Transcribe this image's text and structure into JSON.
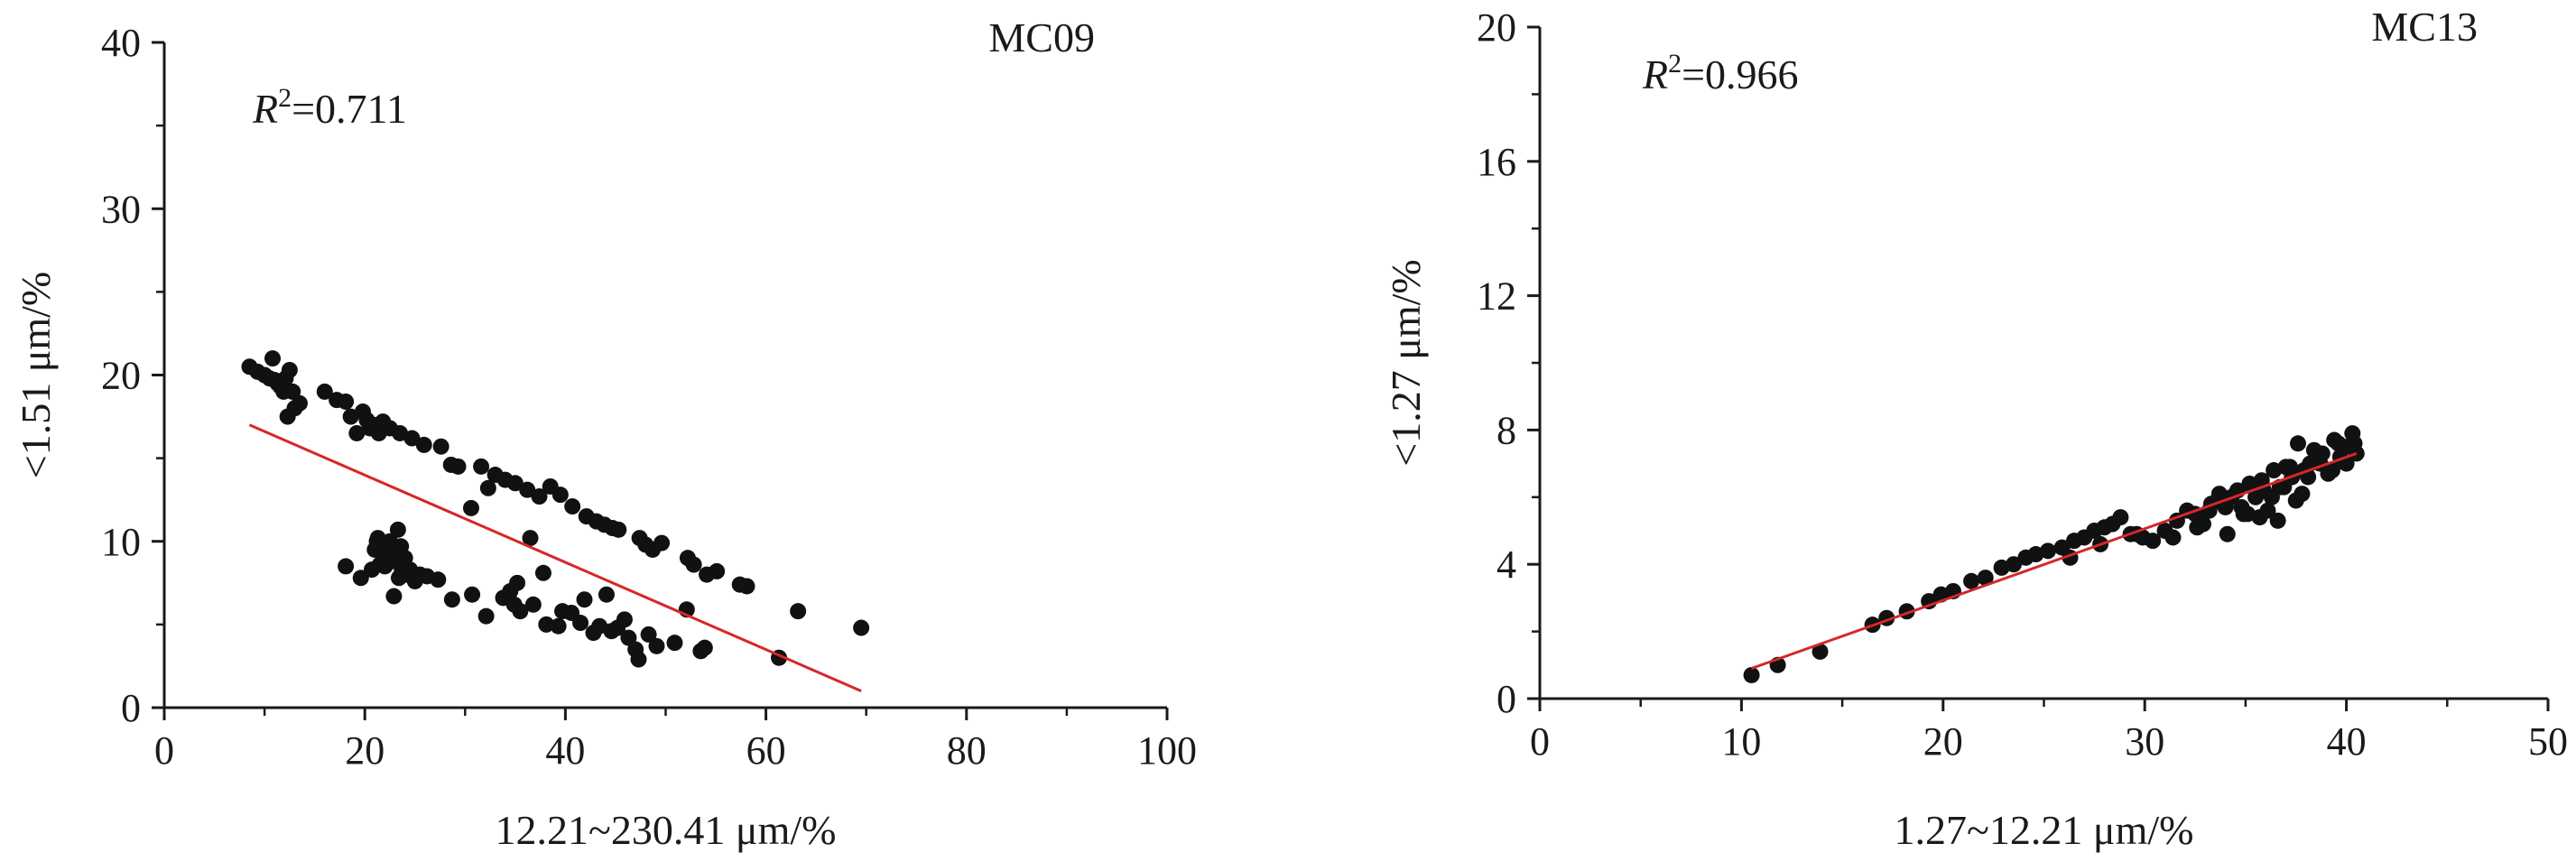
{
  "chart_data": [
    {
      "type": "scatter",
      "panel_label": "MC09",
      "annotation": {
        "prefix": "R",
        "sup": "2",
        "suffix": "=0.711"
      },
      "xlabel": "12.21~230.41 μm/%",
      "ylabel": "<1.51 μm/%",
      "xlim": [
        0,
        100
      ],
      "ylim": [
        0,
        40
      ],
      "xticks": [
        "0",
        "20",
        "40",
        "60",
        "80",
        "100"
      ],
      "yticks": [
        "0",
        "10",
        "20",
        "30",
        "40"
      ],
      "grid": false,
      "point_color": "#111111",
      "fit_color": "#d62728",
      "fit_line": {
        "x": [
          8.5,
          69.5
        ],
        "y": [
          17.0,
          1.0
        ]
      },
      "series": [
        {
          "x": [
            8.5,
            9.3,
            10.0,
            10.5,
            10.8,
            11.0,
            11.3,
            11.6,
            11.9,
            12.1,
            12.5,
            12.8,
            13.0,
            12.3,
            13.5,
            16.0,
            17.2,
            18.1,
            18.6,
            19.2,
            19.8,
            20.2,
            20.5,
            20.9,
            21.4,
            21.8,
            22.5,
            23.5,
            24.7,
            25.9,
            27.6,
            28.6,
            29.3,
            30.6,
            31.6,
            32.3,
            33.0,
            34.0,
            35.0,
            36.2,
            37.4,
            38.5,
            39.5,
            40.7,
            42.1,
            43.1,
            43.9,
            44.7,
            45.3,
            47.4,
            48.0,
            48.7,
            49.6,
            52.2,
            52.8,
            54.1,
            55.1,
            57.4,
            58.1
          ],
          "y": [
            20.5,
            20.2,
            20.0,
            19.8,
            21.0,
            19.7,
            19.5,
            19.3,
            19.0,
            19.8,
            20.3,
            19.0,
            18.0,
            17.5,
            18.3,
            19.0,
            18.5,
            18.4,
            17.5,
            16.5,
            17.8,
            17.3,
            16.8,
            17.0,
            16.5,
            17.2,
            16.8,
            16.5,
            16.2,
            15.8,
            15.7,
            14.6,
            14.5,
            12.0,
            14.5,
            13.2,
            14.0,
            13.7,
            13.5,
            13.1,
            12.7,
            13.3,
            12.8,
            12.1,
            11.5,
            11.2,
            11.0,
            10.8,
            10.7,
            10.2,
            9.8,
            9.5,
            9.9,
            9.0,
            8.6,
            8.0,
            8.2,
            7.4,
            7.3
          ]
        },
        {
          "x": [
            20.7,
            21.0,
            21.3,
            21.5,
            21.8,
            22.0,
            22.3,
            22.5,
            22.8,
            23.0,
            23.3,
            23.5,
            23.7,
            24.0,
            24.2,
            21.2,
            22.4,
            23.6,
            22.9,
            23.4,
            24.5,
            25.0,
            25.5,
            26.2,
            27.3,
            28.7,
            18.1,
            19.6,
            23.1,
            36.5,
            35.2,
            32.1,
            30.7,
            33.8,
            34.5,
            35.5,
            36.8,
            38.1,
            39.3,
            40.6,
            41.5,
            42.8,
            43.4,
            44.6,
            45.2,
            46.3,
            47.0,
            48.3,
            49.1,
            50.9,
            53.5,
            37.8,
            34.9,
            52.1,
            39.7,
            41.9,
            44.1,
            45.9,
            47.3,
            53.9,
            61.3,
            63.2,
            69.5
          ],
          "y": [
            8.3,
            9.5,
            10.2,
            8.6,
            9.2,
            8.5,
            9.8,
            10.0,
            9.0,
            8.8,
            10.7,
            9.5,
            8.2,
            9.0,
            8.0,
            10.0,
            9.5,
            9.7,
            6.7,
            7.8,
            8.3,
            7.6,
            8.0,
            7.9,
            7.7,
            6.5,
            8.5,
            7.8,
            8.8,
            10.2,
            7.5,
            5.5,
            6.8,
            6.6,
            7.0,
            5.8,
            6.2,
            5.0,
            4.9,
            5.7,
            5.1,
            4.5,
            4.9,
            4.6,
            4.8,
            4.2,
            3.5,
            4.4,
            3.7,
            3.9,
            3.4,
            8.1,
            6.2,
            5.9,
            5.8,
            6.5,
            6.8,
            5.3,
            2.9,
            3.6,
            3.0,
            5.8,
            4.8
          ]
        }
      ]
    },
    {
      "type": "scatter",
      "panel_label": "MC13",
      "annotation": {
        "prefix": "R",
        "sup": "2",
        "suffix": "=0.966"
      },
      "xlabel": "1.27~12.21 μm/%",
      "ylabel": "<1.27 μm/%",
      "xlim": [
        0,
        50
      ],
      "ylim": [
        0,
        20
      ],
      "xticks": [
        "0",
        "10",
        "20",
        "30",
        "40",
        "50"
      ],
      "yticks": [
        "0",
        "4",
        "8",
        "12",
        "16",
        "20"
      ],
      "grid": false,
      "point_color": "#111111",
      "fit_color": "#d62728",
      "fit_line": {
        "x": [
          10.5,
          40.5
        ],
        "y": [
          0.9,
          7.3
        ]
      },
      "series": [
        {
          "x": [
            10.5,
            11.8,
            13.9,
            16.5,
            17.2,
            18.2,
            19.3,
            19.9,
            20.5,
            21.4,
            22.1,
            22.9,
            23.5,
            24.1,
            24.6,
            25.2,
            25.9,
            26.5,
            27.0,
            27.5,
            28.0,
            28.4,
            28.8,
            29.3,
            29.9,
            30.4,
            31.0,
            31.6,
            32.1,
            32.5,
            32.9,
            33.3,
            33.7,
            34.0,
            34.3,
            34.6,
            34.9,
            35.2,
            35.5,
            35.8,
            36.1,
            36.4,
            36.7,
            37.0,
            37.3,
            37.6,
            37.9,
            38.2,
            38.5,
            38.8,
            39.1,
            39.4,
            39.7,
            40.0,
            40.3,
            40.5,
            33.6,
            34.8,
            35.7,
            36.3,
            36.9,
            37.5,
            38.1,
            38.7,
            39.3,
            39.9,
            40.4,
            32.6,
            34.1,
            35.1,
            36.6,
            37.8,
            26.3,
            27.8,
            29.6,
            31.4,
            33.2,
            35.9,
            37.2,
            38.4,
            39.6
          ],
          "y": [
            0.7,
            1.0,
            1.4,
            2.2,
            2.4,
            2.6,
            2.9,
            3.1,
            3.2,
            3.5,
            3.6,
            3.9,
            4.0,
            4.2,
            4.3,
            4.4,
            4.5,
            4.7,
            4.8,
            5.0,
            5.1,
            5.2,
            5.4,
            4.9,
            4.8,
            4.7,
            5.0,
            5.3,
            5.6,
            5.5,
            5.2,
            5.8,
            6.1,
            5.7,
            6.0,
            6.2,
            5.5,
            6.4,
            6.0,
            6.5,
            5.6,
            6.8,
            6.3,
            6.9,
            6.6,
            7.6,
            6.8,
            7.0,
            7.1,
            7.3,
            6.7,
            7.7,
            7.2,
            7.0,
            7.9,
            7.3,
            5.9,
            5.7,
            5.4,
            6.0,
            6.3,
            5.9,
            6.6,
            7.0,
            6.8,
            7.5,
            7.6,
            5.1,
            4.9,
            5.5,
            5.3,
            6.1,
            4.2,
            4.6,
            4.9,
            4.8,
            5.6,
            6.2,
            6.9,
            7.4,
            7.6
          ]
        }
      ]
    }
  ]
}
